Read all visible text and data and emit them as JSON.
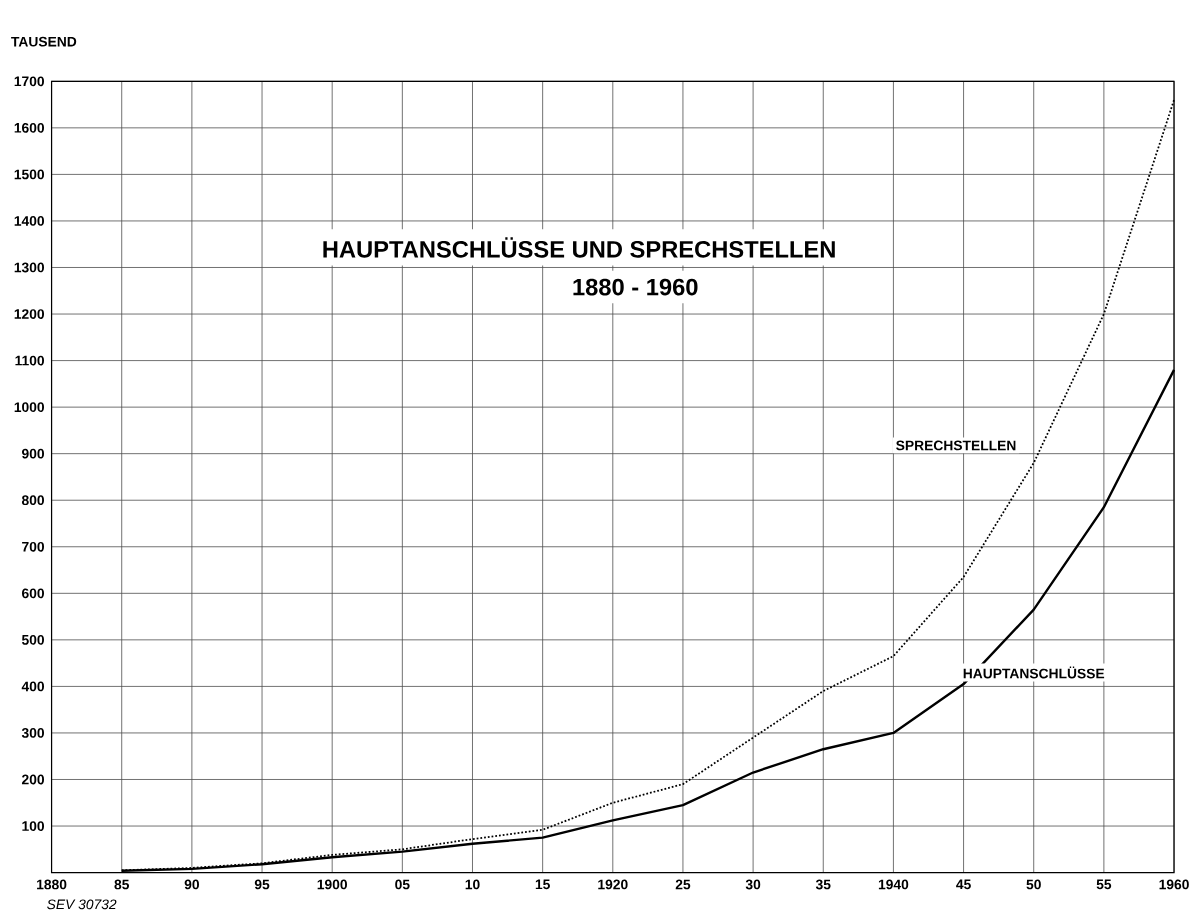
{
  "chart_data": {
    "type": "line",
    "title": "HAUPTANSCHLÜSSE UND SPRECHSTELLEN",
    "subtitle": "1880 - 1960",
    "ylabel": "TAUSEND",
    "annotations": [
      "SEV 30732"
    ],
    "x": [
      1885,
      1890,
      1895,
      1900,
      1905,
      1910,
      1915,
      1920,
      1925,
      1930,
      1935,
      1940,
      1945,
      1950,
      1955,
      1960
    ],
    "series": [
      {
        "name": "SPRECHSTELLEN",
        "color": "#000000",
        "line_style": "dotted",
        "values": [
          5,
          10,
          20,
          38,
          50,
          72,
          92,
          150,
          190,
          290,
          390,
          465,
          635,
          880,
          1200,
          1660
        ]
      },
      {
        "name": "HAUPTANSCHLÜSSE",
        "color": "#000000",
        "line_style": "solid",
        "values": [
          4,
          8,
          18,
          33,
          45,
          62,
          75,
          112,
          145,
          215,
          265,
          300,
          405,
          565,
          785,
          1080
        ]
      }
    ],
    "xlim": [
      1880,
      1960
    ],
    "xticks": [
      {
        "value": 1880,
        "label": "1880"
      },
      {
        "value": 1885,
        "label": "85"
      },
      {
        "value": 1890,
        "label": "90"
      },
      {
        "value": 1895,
        "label": "95"
      },
      {
        "value": 1900,
        "label": "1900"
      },
      {
        "value": 1905,
        "label": "05"
      },
      {
        "value": 1910,
        "label": "10"
      },
      {
        "value": 1915,
        "label": "15"
      },
      {
        "value": 1920,
        "label": "1920"
      },
      {
        "value": 1925,
        "label": "25"
      },
      {
        "value": 1930,
        "label": "30"
      },
      {
        "value": 1935,
        "label": "35"
      },
      {
        "value": 1940,
        "label": "1940"
      },
      {
        "value": 1945,
        "label": "45"
      },
      {
        "value": 1950,
        "label": "50"
      },
      {
        "value": 1955,
        "label": "55"
      },
      {
        "value": 1960,
        "label": "1960"
      }
    ],
    "ylim": [
      0,
      1700
    ],
    "yticks": [
      100,
      200,
      300,
      400,
      500,
      600,
      700,
      800,
      900,
      1000,
      1100,
      1200,
      1300,
      1400,
      1500,
      1600,
      1700
    ],
    "grid": true
  }
}
